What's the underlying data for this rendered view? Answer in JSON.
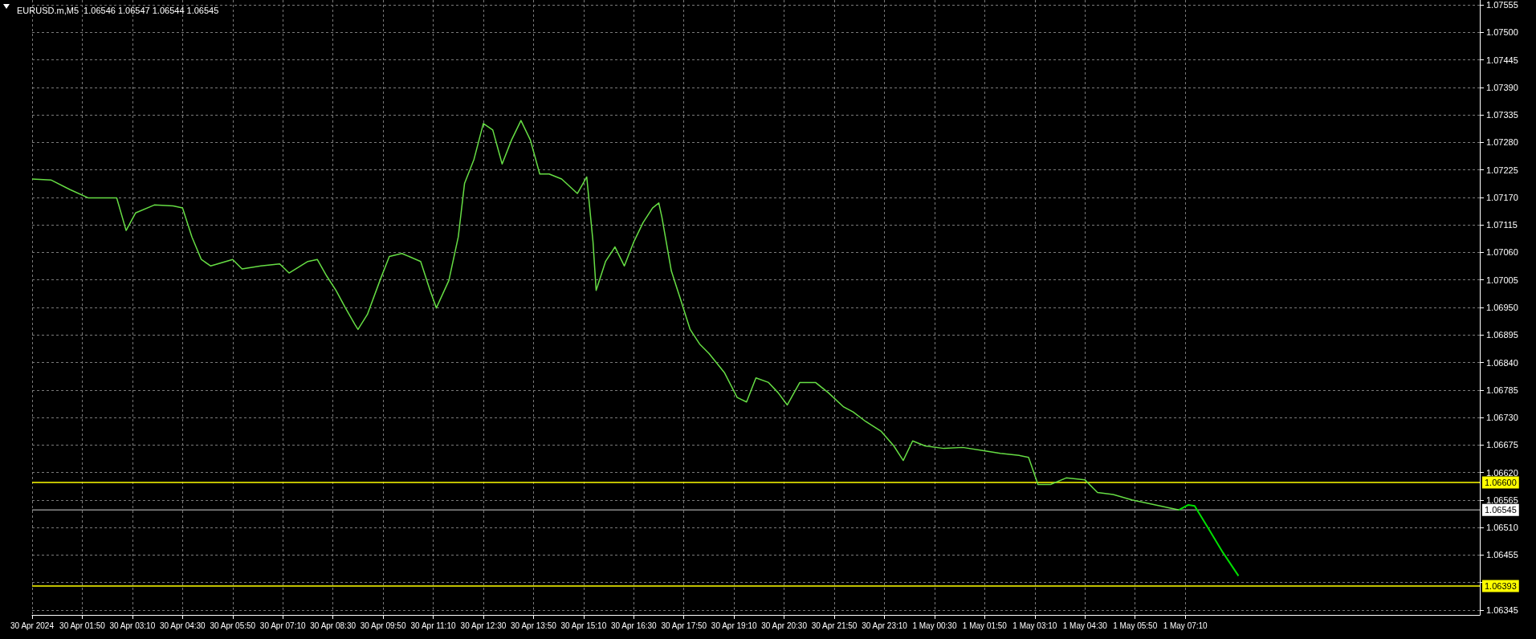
{
  "chart_data": {
    "type": "line",
    "title": "EURUSD.m,M5  1.06546 1.06547 1.06544 1.06545",
    "grid": true,
    "marker": "none",
    "xlim": [
      "2024-04-30T00:30",
      "2024-05-01T15:00"
    ],
    "xticks": [
      {
        "value": "2024-04-30T00:30",
        "label": "30 Apr 2024"
      },
      {
        "value": "2024-04-30T01:50",
        "label": "30 Apr 01:50"
      },
      {
        "value": "2024-04-30T03:10",
        "label": "30 Apr 03:10"
      },
      {
        "value": "2024-04-30T04:30",
        "label": "30 Apr 04:30"
      },
      {
        "value": "2024-04-30T05:50",
        "label": "30 Apr 05:50"
      },
      {
        "value": "2024-04-30T07:10",
        "label": "30 Apr 07:10"
      },
      {
        "value": "2024-04-30T08:30",
        "label": "30 Apr 08:30"
      },
      {
        "value": "2024-04-30T09:50",
        "label": "30 Apr 09:50"
      },
      {
        "value": "2024-04-30T11:10",
        "label": "30 Apr 11:10"
      },
      {
        "value": "2024-04-30T12:30",
        "label": "30 Apr 12:30"
      },
      {
        "value": "2024-04-30T13:50",
        "label": "30 Apr 13:50"
      },
      {
        "value": "2024-04-30T15:10",
        "label": "30 Apr 15:10"
      },
      {
        "value": "2024-04-30T16:30",
        "label": "30 Apr 16:30"
      },
      {
        "value": "2024-04-30T17:50",
        "label": "30 Apr 17:50"
      },
      {
        "value": "2024-04-30T19:10",
        "label": "30 Apr 19:10"
      },
      {
        "value": "2024-04-30T20:30",
        "label": "30 Apr 20:30"
      },
      {
        "value": "2024-04-30T21:50",
        "label": "30 Apr 21:50"
      },
      {
        "value": "2024-04-30T23:10",
        "label": "30 Apr 23:10"
      },
      {
        "value": "2024-05-01T00:30",
        "label": "1 May 00:30"
      },
      {
        "value": "2024-05-01T01:50",
        "label": "1 May 01:50"
      },
      {
        "value": "2024-05-01T03:10",
        "label": "1 May 03:10"
      },
      {
        "value": "2024-05-01T04:30",
        "label": "1 May 04:30"
      },
      {
        "value": "2024-05-01T05:50",
        "label": "1 May 05:50"
      },
      {
        "value": "2024-05-01T07:10",
        "label": "1 May 07:10"
      }
    ],
    "ylim": [
      1.06335,
      1.07565
    ],
    "yticks": [
      {
        "value": 1.06345,
        "label": "1.06345"
      },
      {
        "value": 1.064,
        "label": null
      },
      {
        "value": 1.06455,
        "label": "1.06455"
      },
      {
        "value": 1.0651,
        "label": "1.06510"
      },
      {
        "value": 1.06565,
        "label": "1.06565"
      },
      {
        "value": 1.0662,
        "label": "1.06620"
      },
      {
        "value": 1.06675,
        "label": "1.06675"
      },
      {
        "value": 1.0673,
        "label": "1.06730"
      },
      {
        "value": 1.06785,
        "label": "1.06785"
      },
      {
        "value": 1.0684,
        "label": "1.06840"
      },
      {
        "value": 1.06895,
        "label": "1.06895"
      },
      {
        "value": 1.0695,
        "label": "1.06950"
      },
      {
        "value": 1.07005,
        "label": "1.07005"
      },
      {
        "value": 1.0706,
        "label": "1.07060"
      },
      {
        "value": 1.07115,
        "label": "1.07115"
      },
      {
        "value": 1.0717,
        "label": "1.07170"
      },
      {
        "value": 1.07225,
        "label": "1.07225"
      },
      {
        "value": 1.0728,
        "label": "1.07280"
      },
      {
        "value": 1.07335,
        "label": "1.07335"
      },
      {
        "value": 1.0739,
        "label": "1.07390"
      },
      {
        "value": 1.07445,
        "label": "1.07445"
      },
      {
        "value": 1.075,
        "label": "1.07500"
      },
      {
        "value": 1.07555,
        "label": "1.07555"
      }
    ],
    "ref_lines": [
      {
        "axis": "y",
        "value": 1.066,
        "label": "1.06600",
        "color": "#ffff00"
      },
      {
        "axis": "y",
        "value": 1.06545,
        "label": "1.06545",
        "color": "#8c8c8c"
      },
      {
        "axis": "y",
        "value": 1.06393,
        "label": "1.06393",
        "color": "#ffff00"
      }
    ],
    "series": [
      {
        "color": "#66dd44",
        "x": [
          "2024-04-30T00:30",
          "2024-04-30T01:00",
          "2024-04-30T01:30",
          "2024-04-30T02:00",
          "2024-04-30T02:30",
          "2024-04-30T02:45",
          "2024-04-30T03:00",
          "2024-04-30T03:15",
          "2024-04-30T03:45",
          "2024-04-30T04:15",
          "2024-04-30T04:30",
          "2024-04-30T04:45",
          "2024-04-30T05:00",
          "2024-04-30T05:15",
          "2024-04-30T05:50",
          "2024-04-30T06:05",
          "2024-04-30T06:35",
          "2024-04-30T07:05",
          "2024-04-30T07:20",
          "2024-04-30T07:50",
          "2024-04-30T08:05",
          "2024-04-30T08:20",
          "2024-04-30T08:35",
          "2024-04-30T08:50",
          "2024-04-30T09:05",
          "2024-04-30T09:10",
          "2024-04-30T09:25",
          "2024-04-30T09:45",
          "2024-04-30T10:00",
          "2024-04-30T10:20",
          "2024-04-30T10:50",
          "2024-04-30T11:05",
          "2024-04-30T11:15",
          "2024-04-30T11:35",
          "2024-04-30T11:50",
          "2024-04-30T12:00",
          "2024-04-30T12:15",
          "2024-04-30T12:30",
          "2024-04-30T12:45",
          "2024-04-30T13:00",
          "2024-04-30T13:15",
          "2024-04-30T13:30",
          "2024-04-30T13:45",
          "2024-04-30T14:00",
          "2024-04-30T14:15",
          "2024-04-30T14:35",
          "2024-04-30T15:00",
          "2024-04-30T15:15",
          "2024-04-30T15:25",
          "2024-04-30T15:30",
          "2024-04-30T15:45",
          "2024-04-30T16:00",
          "2024-04-30T16:15",
          "2024-04-30T16:30",
          "2024-04-30T16:45",
          "2024-04-30T17:00",
          "2024-04-30T17:10",
          "2024-04-30T17:15",
          "2024-04-30T17:30",
          "2024-04-30T17:45",
          "2024-04-30T18:00",
          "2024-04-30T18:15",
          "2024-04-30T18:30",
          "2024-04-30T18:55",
          "2024-04-30T19:15",
          "2024-04-30T19:30",
          "2024-04-30T19:45",
          "2024-04-30T20:05",
          "2024-04-30T20:20",
          "2024-04-30T20:35",
          "2024-04-30T20:55",
          "2024-04-30T21:20",
          "2024-04-30T21:40",
          "2024-04-30T22:05",
          "2024-04-30T22:20",
          "2024-04-30T22:40",
          "2024-04-30T23:05",
          "2024-04-30T23:25",
          "2024-04-30T23:40",
          "2024-04-30T23:55",
          "2024-05-01T00:15",
          "2024-05-01T00:45",
          "2024-05-01T01:15",
          "2024-05-01T01:45",
          "2024-05-01T02:15",
          "2024-05-01T02:45",
          "2024-05-01T03:00",
          "2024-05-01T03:15",
          "2024-05-01T03:35",
          "2024-05-01T04:00",
          "2024-05-01T04:30",
          "2024-05-01T04:50",
          "2024-05-01T05:15",
          "2024-05-01T05:45",
          "2024-05-01T06:15",
          "2024-05-01T06:45",
          "2024-05-01T07:00"
        ],
        "values": [
          1.07207,
          1.07205,
          1.07186,
          1.07169,
          1.07169,
          1.07169,
          1.07104,
          1.07139,
          1.07155,
          1.07153,
          1.07149,
          1.07091,
          1.07046,
          1.07033,
          1.07046,
          1.07027,
          1.07033,
          1.07037,
          1.07019,
          1.07042,
          1.07046,
          1.07013,
          1.06984,
          1.06949,
          1.06916,
          1.06906,
          1.06936,
          1.07004,
          1.07052,
          1.07058,
          1.07042,
          1.06984,
          1.06949,
          1.07004,
          1.07091,
          1.07198,
          1.07246,
          1.07318,
          1.07305,
          1.07237,
          1.07285,
          1.07324,
          1.07285,
          1.07217,
          1.07217,
          1.07207,
          1.07178,
          1.07211,
          1.07081,
          1.06984,
          1.07042,
          1.07071,
          1.07033,
          1.07081,
          1.0712,
          1.07149,
          1.07159,
          1.0713,
          1.07023,
          1.06965,
          1.06906,
          1.06877,
          1.06858,
          1.06819,
          1.0677,
          1.06761,
          1.06809,
          1.068,
          1.0678,
          1.06755,
          1.068,
          1.068,
          1.0678,
          1.06751,
          1.06741,
          1.06722,
          1.06702,
          1.06673,
          1.06644,
          1.06683,
          1.06673,
          1.06668,
          1.0667,
          1.06664,
          1.06658,
          1.06654,
          1.0665,
          1.06596,
          1.06596,
          1.06609,
          1.06605,
          1.0658,
          1.06576,
          1.06565,
          1.06557,
          1.06549,
          1.06545
        ]
      },
      {
        "color": "#00e000",
        "x": [
          "2024-05-01T07:00",
          "2024-05-01T07:15",
          "2024-05-01T07:25",
          "2024-05-01T07:45",
          "2024-05-01T08:10",
          "2024-05-01T08:35"
        ],
        "values": [
          1.06545,
          1.06555,
          1.06553,
          1.06512,
          1.0646,
          1.06413
        ]
      }
    ]
  }
}
